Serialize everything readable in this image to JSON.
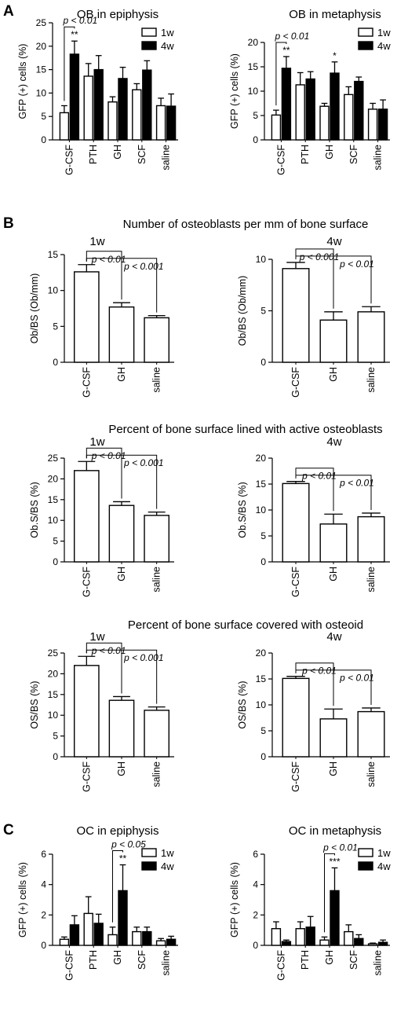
{
  "panel_letters": [
    "A",
    "B",
    "C"
  ],
  "section_titles": {
    "b1": "Number of osteoblasts per mm of bone surface",
    "b2": "Percent of bone surface lined with active osteoblasts",
    "b3": "Percent of bone surface covered with osteoid"
  },
  "chart_data": [
    {
      "id": "A1",
      "type": "bar",
      "title": "OB in epiphysis",
      "ylabel": "GFP (+) cells (%)",
      "xlabel": "",
      "categories": [
        "G-CSF",
        "PTH",
        "GH",
        "SCF",
        "saline"
      ],
      "ylim": [
        0,
        25
      ],
      "yticks": [
        0,
        5,
        10,
        15,
        20,
        25
      ],
      "legend": {
        "position": "top-right"
      },
      "series": [
        {
          "name": "1w",
          "fill": "#ffffff",
          "values": [
            5.8,
            13.6,
            8.1,
            10.7,
            7.3
          ],
          "errors": [
            1.5,
            2.7,
            1.1,
            1.3,
            1.6
          ]
        },
        {
          "name": "4w",
          "fill": "#000000",
          "values": [
            18.3,
            15.0,
            13.1,
            14.9,
            7.2
          ],
          "errors": [
            2.8,
            3.0,
            2.4,
            2.0,
            2.6
          ]
        }
      ],
      "significance": [
        {
          "category": "G-CSF",
          "series": "4w",
          "label": "**"
        }
      ],
      "brackets": [
        {
          "from": "G-CSF:1w",
          "to": "G-CSF:4w",
          "label": "p < 0.01"
        }
      ]
    },
    {
      "id": "A2",
      "type": "bar",
      "title": "OB in metaphysis",
      "ylabel": "GFP (+) cells (%)",
      "xlabel": "",
      "categories": [
        "G-CSF",
        "PTH",
        "GH",
        "SCF",
        "saline"
      ],
      "ylim": [
        0,
        20
      ],
      "yticks": [
        0,
        5,
        10,
        15,
        20
      ],
      "legend": {
        "position": "top-right"
      },
      "series": [
        {
          "name": "1w",
          "fill": "#ffffff",
          "values": [
            5.1,
            11.3,
            6.9,
            9.3,
            6.3
          ],
          "errors": [
            1.0,
            2.5,
            0.6,
            1.6,
            1.2
          ]
        },
        {
          "name": "4w",
          "fill": "#000000",
          "values": [
            14.7,
            12.5,
            13.7,
            12.0,
            6.3
          ],
          "errors": [
            2.4,
            1.5,
            2.3,
            0.9,
            1.9
          ]
        }
      ],
      "significance": [
        {
          "category": "G-CSF",
          "series": "4w",
          "label": "**"
        },
        {
          "category": "GH",
          "series": "4w",
          "label": "*"
        }
      ],
      "brackets": [
        {
          "from": "G-CSF:1w",
          "to": "G-CSF:4w",
          "label": "p < 0.01"
        }
      ]
    },
    {
      "id": "B1a",
      "type": "bar",
      "title": "1w",
      "ylabel": "Ob/BS (Ob/mm)",
      "xlabel": "",
      "categories": [
        "G-CSF",
        "GH",
        "saline"
      ],
      "ylim": [
        0,
        15
      ],
      "yticks": [
        0,
        5,
        10,
        15
      ],
      "series": [
        {
          "fill": "#ffffff",
          "values": [
            12.6,
            7.7,
            6.2
          ],
          "errors": [
            1.0,
            0.6,
            0.3
          ]
        }
      ],
      "brackets": [
        {
          "from": "G-CSF",
          "to": "GH",
          "label": "p < 0.01"
        },
        {
          "from": "G-CSF",
          "to": "saline",
          "label": "p < 0.001"
        }
      ]
    },
    {
      "id": "B1b",
      "type": "bar",
      "title": "4w",
      "ylabel": "Ob/BS (Ob/mm)",
      "xlabel": "",
      "categories": [
        "G-CSF",
        "GH",
        "saline"
      ],
      "ylim": [
        0,
        10
      ],
      "yticks": [
        0,
        5,
        10
      ],
      "series": [
        {
          "fill": "#ffffff",
          "values": [
            9.1,
            4.1,
            4.9
          ],
          "errors": [
            0.6,
            0.8,
            0.5
          ]
        }
      ],
      "brackets": [
        {
          "from": "G-CSF",
          "to": "GH",
          "label": "p < 0.001"
        },
        {
          "from": "G-CSF",
          "to": "saline",
          "label": "p < 0.01"
        }
      ]
    },
    {
      "id": "B2a",
      "type": "bar",
      "title": "1w",
      "ylabel": "Ob.S/BS (%)",
      "xlabel": "",
      "categories": [
        "G-CSF",
        "GH",
        "saline"
      ],
      "ylim": [
        0,
        25
      ],
      "yticks": [
        0,
        5,
        10,
        15,
        20,
        25
      ],
      "series": [
        {
          "fill": "#ffffff",
          "values": [
            22.0,
            13.6,
            11.2
          ],
          "errors": [
            2.2,
            0.9,
            0.8
          ]
        }
      ],
      "brackets": [
        {
          "from": "G-CSF",
          "to": "GH",
          "label": "p < 0.01"
        },
        {
          "from": "G-CSF",
          "to": "saline",
          "label": "p < 0.001"
        }
      ]
    },
    {
      "id": "B2b",
      "type": "bar",
      "title": "4w",
      "ylabel": "Ob.S/BS (%)",
      "xlabel": "",
      "categories": [
        "G-CSF",
        "GH",
        "saline"
      ],
      "ylim": [
        0,
        20
      ],
      "yticks": [
        0,
        5,
        10,
        15,
        20
      ],
      "series": [
        {
          "fill": "#ffffff",
          "values": [
            15.1,
            7.3,
            8.7
          ],
          "errors": [
            0.4,
            1.9,
            0.7
          ]
        }
      ],
      "brackets": [
        {
          "from": "G-CSF",
          "to": "GH",
          "label": "p < 0.01"
        },
        {
          "from": "G-CSF",
          "to": "saline",
          "label": "p < 0.01"
        }
      ]
    },
    {
      "id": "B3a",
      "type": "bar",
      "title": "1w",
      "ylabel": "OS/BS (%)",
      "xlabel": "",
      "categories": [
        "G-CSF",
        "GH",
        "saline"
      ],
      "ylim": [
        0,
        25
      ],
      "yticks": [
        0,
        5,
        10,
        15,
        20,
        25
      ],
      "series": [
        {
          "fill": "#ffffff",
          "values": [
            22.0,
            13.6,
            11.2
          ],
          "errors": [
            2.2,
            0.9,
            0.8
          ]
        }
      ],
      "brackets": [
        {
          "from": "G-CSF",
          "to": "GH",
          "label": "p < 0.01"
        },
        {
          "from": "G-CSF",
          "to": "saline",
          "label": "p < 0.001"
        }
      ]
    },
    {
      "id": "B3b",
      "type": "bar",
      "title": "4w",
      "ylabel": "OS/BS (%)",
      "xlabel": "",
      "categories": [
        "G-CSF",
        "GH",
        "saline"
      ],
      "ylim": [
        0,
        20
      ],
      "yticks": [
        0,
        5,
        10,
        15,
        20
      ],
      "series": [
        {
          "fill": "#ffffff",
          "values": [
            15.1,
            7.3,
            8.7
          ],
          "errors": [
            0.4,
            1.9,
            0.7
          ]
        }
      ],
      "brackets": [
        {
          "from": "G-CSF",
          "to": "GH",
          "label": "p < 0.01"
        },
        {
          "from": "G-CSF",
          "to": "saline",
          "label": "p < 0.01"
        }
      ]
    },
    {
      "id": "C1",
      "type": "bar",
      "title": "OC in epiphysis",
      "ylabel": "GFP (+) cells (%)",
      "xlabel": "",
      "categories": [
        "G-CSF",
        "PTH",
        "GH",
        "SCF",
        "saline"
      ],
      "ylim": [
        0,
        6
      ],
      "yticks": [
        0,
        2,
        4,
        6
      ],
      "legend": {
        "position": "top-right"
      },
      "series": [
        {
          "name": "1w",
          "fill": "#ffffff",
          "values": [
            0.4,
            2.1,
            0.7,
            0.9,
            0.3
          ],
          "errors": [
            0.15,
            1.1,
            0.5,
            0.3,
            0.15
          ]
        },
        {
          "name": "4w",
          "fill": "#000000",
          "values": [
            1.35,
            1.45,
            3.6,
            0.9,
            0.4
          ],
          "errors": [
            0.6,
            0.6,
            1.7,
            0.3,
            0.2
          ]
        }
      ],
      "significance": [
        {
          "category": "GH",
          "series": "4w",
          "label": "**"
        }
      ],
      "brackets": [
        {
          "from": "GH:1w",
          "to": "GH:4w",
          "label": "p < 0.05"
        }
      ]
    },
    {
      "id": "C2",
      "type": "bar",
      "title": "OC in metaphysis",
      "ylabel": "GFP (+) cells (%)",
      "xlabel": "",
      "categories": [
        "G-CSF",
        "PTH",
        "GH",
        "SCF",
        "saline"
      ],
      "ylim": [
        0,
        6
      ],
      "yticks": [
        0,
        2,
        4,
        6
      ],
      "legend": {
        "position": "top-right"
      },
      "series": [
        {
          "name": "1w",
          "fill": "#ffffff",
          "values": [
            1.1,
            1.1,
            0.35,
            0.9,
            0.1
          ],
          "errors": [
            0.45,
            0.45,
            0.2,
            0.45,
            0.05
          ]
        },
        {
          "name": "4w",
          "fill": "#000000",
          "values": [
            0.25,
            1.2,
            3.6,
            0.45,
            0.2
          ],
          "errors": [
            0.1,
            0.7,
            1.5,
            0.25,
            0.15
          ]
        }
      ],
      "significance": [
        {
          "category": "GH",
          "series": "4w",
          "label": "***"
        }
      ],
      "brackets": [
        {
          "from": "GH:1w",
          "to": "GH:4w",
          "label": "p < 0.01"
        }
      ]
    }
  ]
}
